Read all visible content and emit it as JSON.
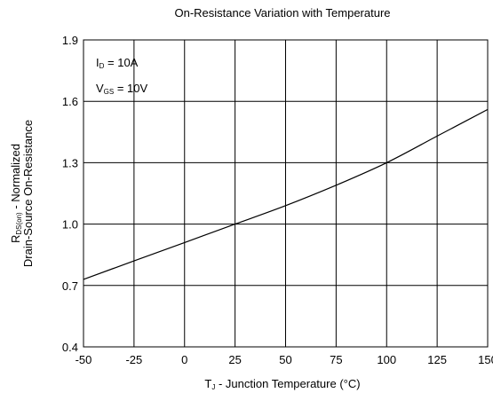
{
  "chart_data": {
    "type": "line",
    "title": "On-Resistance Variation with Temperature",
    "xlabel_main": "T",
    "xlabel_sub": "J",
    "xlabel_rest": " - Junction Temperature (°C)",
    "ylabel_line1_main": "R",
    "ylabel_line1_sub": "DS(on)",
    "ylabel_line1_rest": " - Normalized",
    "ylabel_line2": "Drain-Source On-Resistance",
    "xlim": [
      -50,
      150
    ],
    "ylim": [
      0.4,
      1.9
    ],
    "x_ticks": [
      "-50",
      "-25",
      "0",
      "25",
      "50",
      "75",
      "100",
      "125",
      "150"
    ],
    "y_ticks": [
      "0.4",
      "0.7",
      "1.0",
      "1.3",
      "1.6",
      "1.9"
    ],
    "grid": true,
    "annotations": [
      {
        "main": "I",
        "sub": "D",
        "rest": " = 10A"
      },
      {
        "main": "V",
        "sub": "GS",
        "rest": " = 10V"
      }
    ],
    "series": [
      {
        "x": [
          -50,
          -25,
          0,
          25,
          50,
          75,
          100,
          125,
          150
        ],
        "y": [
          0.73,
          0.82,
          0.91,
          1.0,
          1.09,
          1.19,
          1.3,
          1.43,
          1.56
        ]
      }
    ]
  }
}
